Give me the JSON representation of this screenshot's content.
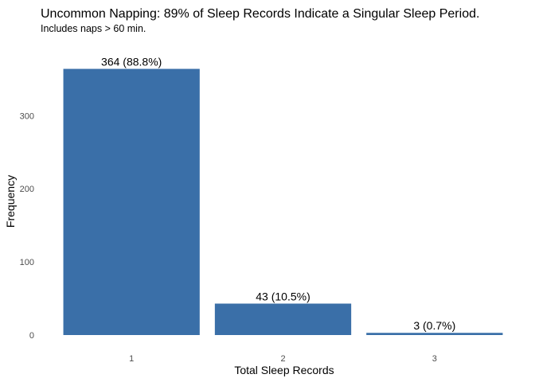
{
  "chart_data": {
    "type": "bar",
    "title": "Uncommon Napping: 89% of Sleep Records Indicate a Singular Sleep Period.",
    "subtitle": "Includes naps > 60 min.",
    "xlabel": "Total Sleep Records",
    "ylabel": "Frequency",
    "categories": [
      "1",
      "2",
      "3"
    ],
    "values": [
      364,
      43,
      3
    ],
    "data_labels": [
      "364 (88.8%)",
      "43 (10.5%)",
      "3 (0.7%)"
    ],
    "y_ticks": [
      0,
      100,
      200,
      300
    ],
    "ylim": [
      0,
      382
    ],
    "grid": false,
    "legend": "none",
    "bar_color": "#3a6fa8"
  }
}
